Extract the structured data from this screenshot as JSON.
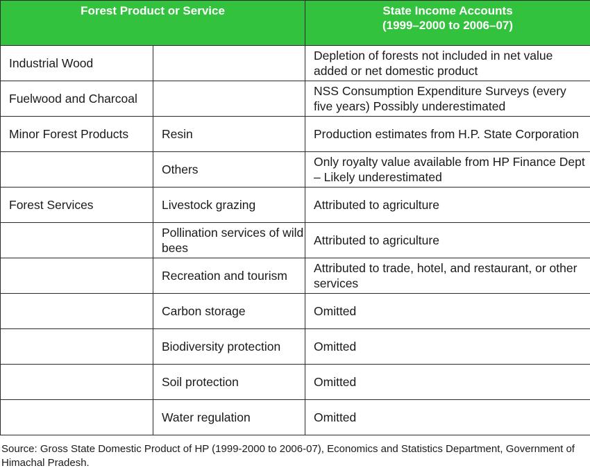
{
  "header": {
    "col1": "Forest Product or Service",
    "col3_line1": "State Income Accounts",
    "col3_line2": "(1999–2000 to 2006–07)"
  },
  "rows": [
    {
      "category": "Industrial Wood",
      "item": "",
      "accounts": "Depletion of forests not included in net value added or net domestic product"
    },
    {
      "category": "Fuelwood and Charcoal",
      "item": "",
      "accounts": "NSS Consumption Expenditure Surveys (every five years) Possibly underestimated"
    },
    {
      "category": "Minor Forest Products",
      "item": "Resin",
      "accounts": "Production estimates from H.P. State Corporation"
    },
    {
      "category": "",
      "item": "Others",
      "accounts": "Only royalty value available from HP Finance Dept – Likely underestimated"
    },
    {
      "category": "Forest Services",
      "item": "Livestock grazing",
      "accounts": "Attributed to agriculture"
    },
    {
      "category": "",
      "item": "Pollination services of wild bees",
      "accounts": "Attributed to agriculture"
    },
    {
      "category": "",
      "item": "Recreation and tourism",
      "accounts": "Attributed to trade, hotel, and restaurant, or other services"
    },
    {
      "category": "",
      "item": "Carbon storage",
      "accounts": "Omitted"
    },
    {
      "category": "",
      "item": "Biodiversity protection",
      "accounts": "Omitted"
    },
    {
      "category": "",
      "item": "Soil protection",
      "accounts": "Omitted"
    },
    {
      "category": "",
      "item": "Water regulation",
      "accounts": "Omitted"
    }
  ],
  "source": "Source: Gross State Domestic Product of HP (1999-2000 to 2006-07), Economics and Statistics Department, Government of Himachal Pradesh.",
  "colors": {
    "header_bg": "#33c23e",
    "header_text": "#ffffff",
    "border": "#2a2a2a"
  }
}
